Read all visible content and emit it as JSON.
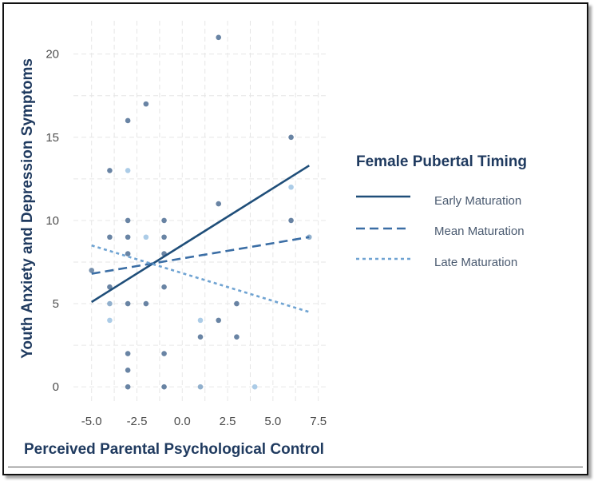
{
  "chart_data": {
    "type": "scatter",
    "title": "",
    "xlabel": "Perceived Parental Psychological Control",
    "ylabel": "Youth Anxiety and Depression Symptoms",
    "xlim": [
      -6,
      8
    ],
    "ylim": [
      -1,
      22
    ],
    "x_ticks": [
      "-5.0",
      "-2.5",
      "0.0",
      "2.5",
      "5.0",
      "7.5"
    ],
    "x_tick_values": [
      -5,
      -2.5,
      0,
      2.5,
      5,
      7.5
    ],
    "y_ticks": [
      "0",
      "5",
      "10",
      "15",
      "20"
    ],
    "y_tick_values": [
      0,
      5,
      10,
      15,
      20
    ],
    "grid": "dashed",
    "legend": {
      "title": "Female Pubertal Timing",
      "placement": "right",
      "entries": [
        {
          "label": "Early Maturation",
          "style": "solid",
          "color": "#1f4e79"
        },
        {
          "label": "Mean Maturation",
          "style": "dashed",
          "color": "#3b6ea5"
        },
        {
          "label": "Late Maturation",
          "style": "dotted",
          "color": "#6fa3d2"
        }
      ]
    },
    "lines": [
      {
        "name": "Early Maturation",
        "style": "solid",
        "color": "#1f4e79",
        "x": [
          -5,
          7
        ],
        "y": [
          5.1,
          13.3
        ]
      },
      {
        "name": "Mean Maturation",
        "style": "dashed",
        "color": "#3b6ea5",
        "x": [
          -5,
          7
        ],
        "y": [
          6.8,
          9.0
        ]
      },
      {
        "name": "Late Maturation",
        "style": "dotted",
        "color": "#6fa3d2",
        "x": [
          -5,
          7
        ],
        "y": [
          8.5,
          4.5
        ]
      }
    ],
    "points": [
      {
        "x": -5,
        "y": 7,
        "color": "#5f7ea0"
      },
      {
        "x": -4,
        "y": 13,
        "color": "#4f6f94"
      },
      {
        "x": -4,
        "y": 9,
        "color": "#4f6f94"
      },
      {
        "x": -4,
        "y": 6,
        "color": "#4f6f94"
      },
      {
        "x": -4,
        "y": 5,
        "color": "#7ea2c4"
      },
      {
        "x": -4,
        "y": 4,
        "color": "#9ec3e3"
      },
      {
        "x": -3,
        "y": 16,
        "color": "#4f6f94"
      },
      {
        "x": -3,
        "y": 13,
        "color": "#9ec3e3"
      },
      {
        "x": -3,
        "y": 10,
        "color": "#4f6f94"
      },
      {
        "x": -3,
        "y": 9,
        "color": "#4f6f94"
      },
      {
        "x": -3,
        "y": 8,
        "color": "#4f6f94"
      },
      {
        "x": -3,
        "y": 5,
        "color": "#4f6f94"
      },
      {
        "x": -3,
        "y": 2,
        "color": "#4f6f94"
      },
      {
        "x": -3,
        "y": 1,
        "color": "#4f6f94"
      },
      {
        "x": -3,
        "y": 0,
        "color": "#4f6f94"
      },
      {
        "x": -2,
        "y": 17,
        "color": "#4f6f94"
      },
      {
        "x": -2,
        "y": 9,
        "color": "#9ec3e3"
      },
      {
        "x": -2,
        "y": 5,
        "color": "#4f6f94"
      },
      {
        "x": -1,
        "y": 10,
        "color": "#4f6f94"
      },
      {
        "x": -1,
        "y": 9,
        "color": "#4f6f94"
      },
      {
        "x": -1,
        "y": 8,
        "color": "#4f6f94"
      },
      {
        "x": -1,
        "y": 6,
        "color": "#4f6f94"
      },
      {
        "x": -1,
        "y": 2,
        "color": "#4f6f94"
      },
      {
        "x": -1,
        "y": 0,
        "color": "#4f6f94"
      },
      {
        "x": 1,
        "y": 4,
        "color": "#9ec3e3"
      },
      {
        "x": 1,
        "y": 3,
        "color": "#4f6f94"
      },
      {
        "x": 1,
        "y": 0,
        "color": "#7ea2c4"
      },
      {
        "x": 2,
        "y": 21,
        "color": "#4f6f94"
      },
      {
        "x": 2,
        "y": 11,
        "color": "#4f6f94"
      },
      {
        "x": 2,
        "y": 4,
        "color": "#4f6f94"
      },
      {
        "x": 3,
        "y": 5,
        "color": "#4f6f94"
      },
      {
        "x": 3,
        "y": 3,
        "color": "#4f6f94"
      },
      {
        "x": 4,
        "y": 0,
        "color": "#9ec3e3"
      },
      {
        "x": 6,
        "y": 15,
        "color": "#4f6f94"
      },
      {
        "x": 6,
        "y": 12,
        "color": "#9ec3e3"
      },
      {
        "x": 6,
        "y": 10,
        "color": "#4f6f94"
      },
      {
        "x": 7,
        "y": 9,
        "color": "#7ea2c4"
      }
    ]
  }
}
